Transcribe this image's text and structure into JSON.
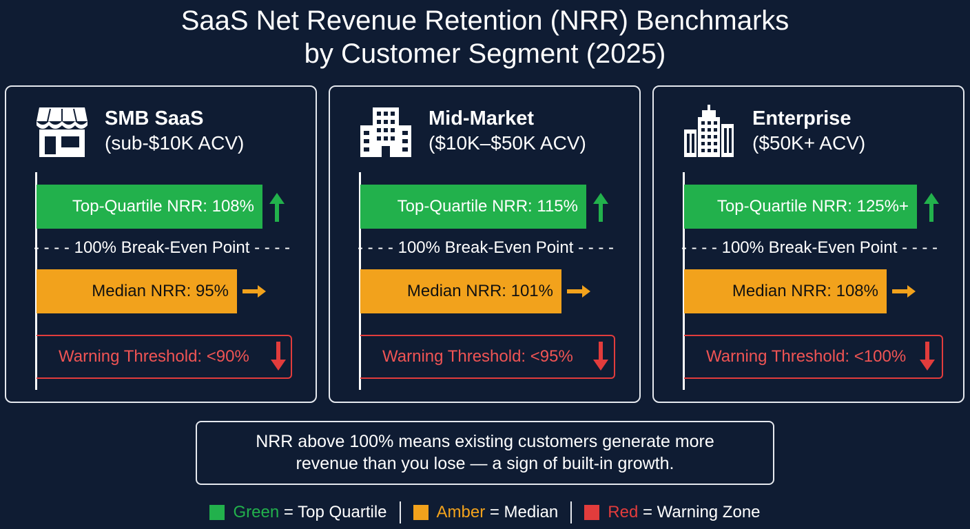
{
  "title": {
    "line1": "SaaS Net Revenue Retention (NRR) Benchmarks",
    "line2": "by Customer Segment (2025)"
  },
  "colors": {
    "background": "#0f1c33",
    "top_quartile": "#22b14c",
    "median": "#f2a21c",
    "warning": "#e23c3c"
  },
  "chart_data": {
    "type": "bar",
    "segments": [
      {
        "name": "SMB SaaS",
        "acv": "(sub-$10K ACV)",
        "icon": "storefront-icon",
        "top_quartile": {
          "label": "Top-Quartile NRR: 108%",
          "value": 108,
          "trend": "up-arrow-icon"
        },
        "break_even": {
          "label": "100% Break-Even Point",
          "value": 100
        },
        "median": {
          "label": "Median NRR: 95%",
          "value": 95,
          "trend": "right-arrow-icon"
        },
        "warning": {
          "label": "Warning Threshold: <90%",
          "value": 90,
          "trend": "down-arrow-icon"
        }
      },
      {
        "name": "Mid-Market",
        "acv": "($10K–$50K ACV)",
        "icon": "office-building-icon",
        "top_quartile": {
          "label": "Top-Quartile NRR: 115%",
          "value": 115,
          "trend": "up-arrow-icon"
        },
        "break_even": {
          "label": "100% Break-Even Point",
          "value": 100
        },
        "median": {
          "label": "Median NRR: 101%",
          "value": 101,
          "trend": "right-arrow-icon"
        },
        "warning": {
          "label": "Warning Threshold: <95%",
          "value": 95,
          "trend": "down-arrow-icon"
        }
      },
      {
        "name": "Enterprise",
        "acv": "($50K+ ACV)",
        "icon": "skyscraper-icon",
        "top_quartile": {
          "label": "Top-Quartile NRR: 125%+",
          "value": 125,
          "trend": "up-arrow-icon"
        },
        "break_even": {
          "label": "100% Break-Even Point",
          "value": 100
        },
        "median": {
          "label": "Median NRR: 108%",
          "value": 108,
          "trend": "right-arrow-icon"
        },
        "warning": {
          "label": "Warning Threshold: <100%",
          "value": 100,
          "trend": "down-arrow-icon"
        }
      }
    ]
  },
  "note": {
    "line1": "NRR above 100% means existing customers generate more",
    "line2": "revenue than you lose — a sign of built-in growth."
  },
  "legend": [
    {
      "color_word": "Green",
      "meaning": " = Top Quartile",
      "color": "#22b14c"
    },
    {
      "color_word": "Amber",
      "meaning": " = Median",
      "color": "#f2a21c"
    },
    {
      "color_word": "Red",
      "meaning": " = Warning Zone",
      "color": "#e23c3c"
    }
  ]
}
